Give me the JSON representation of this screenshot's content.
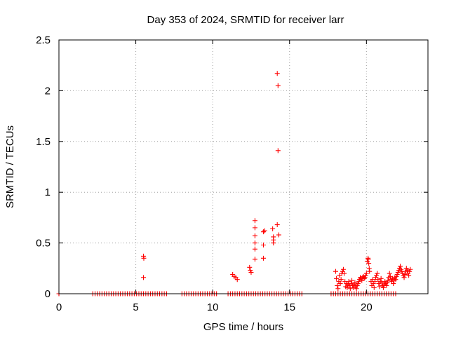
{
  "chart_data": {
    "type": "scatter",
    "title": "Day 353 of 2024, SRMTID for receiver larr",
    "xlabel": "GPS time / hours",
    "ylabel": "SRMTID / TECUs",
    "xlim": [
      0,
      24
    ],
    "ylim": [
      0,
      2.5
    ],
    "x_ticks": [
      0,
      5,
      10,
      15,
      20
    ],
    "x_tick_labels": [
      "0",
      "5",
      "10",
      "15",
      "20"
    ],
    "y_ticks": [
      0,
      0.5,
      1,
      1.5,
      2,
      2.5
    ],
    "y_tick_labels": [
      "0",
      "0.5",
      "1",
      "1.5",
      "2",
      "2.5"
    ],
    "grid": true,
    "marker": "+",
    "series": [
      {
        "name": "SRMTID",
        "color": "#ff0000",
        "points": [
          [
            0.0,
            0.0
          ],
          [
            2.2,
            0.0
          ],
          [
            2.35,
            0.0
          ],
          [
            2.5,
            0.0
          ],
          [
            2.65,
            0.0
          ],
          [
            2.8,
            0.0
          ],
          [
            2.95,
            0.0
          ],
          [
            3.1,
            0.0
          ],
          [
            3.25,
            0.0
          ],
          [
            3.4,
            0.0
          ],
          [
            3.55,
            0.0
          ],
          [
            3.7,
            0.0
          ],
          [
            3.85,
            0.0
          ],
          [
            4.0,
            0.0
          ],
          [
            4.15,
            0.0
          ],
          [
            4.3,
            0.0
          ],
          [
            4.45,
            0.0
          ],
          [
            4.6,
            0.0
          ],
          [
            4.75,
            0.0
          ],
          [
            4.9,
            0.0
          ],
          [
            5.05,
            0.0
          ],
          [
            5.2,
            0.0
          ],
          [
            5.35,
            0.0
          ],
          [
            5.5,
            0.0
          ],
          [
            5.65,
            0.0
          ],
          [
            5.8,
            0.0
          ],
          [
            5.95,
            0.0
          ],
          [
            6.1,
            0.0
          ],
          [
            6.25,
            0.0
          ],
          [
            6.4,
            0.0
          ],
          [
            6.55,
            0.0
          ],
          [
            6.7,
            0.0
          ],
          [
            6.85,
            0.0
          ],
          [
            7.0,
            0.0
          ],
          [
            5.5,
            0.37
          ],
          [
            5.52,
            0.35
          ],
          [
            5.5,
            0.16
          ],
          [
            8.0,
            0.0
          ],
          [
            8.15,
            0.0
          ],
          [
            8.3,
            0.0
          ],
          [
            8.45,
            0.0
          ],
          [
            8.6,
            0.0
          ],
          [
            8.75,
            0.0
          ],
          [
            8.9,
            0.0
          ],
          [
            9.05,
            0.0
          ],
          [
            9.2,
            0.0
          ],
          [
            9.35,
            0.0
          ],
          [
            9.5,
            0.0
          ],
          [
            9.65,
            0.0
          ],
          [
            9.8,
            0.0
          ],
          [
            9.95,
            0.0
          ],
          [
            10.1,
            0.0
          ],
          [
            10.25,
            0.0
          ],
          [
            11.0,
            0.0
          ],
          [
            11.15,
            0.0
          ],
          [
            11.3,
            0.0
          ],
          [
            11.45,
            0.0
          ],
          [
            11.6,
            0.0
          ],
          [
            11.75,
            0.0
          ],
          [
            11.9,
            0.0
          ],
          [
            12.05,
            0.0
          ],
          [
            12.2,
            0.0
          ],
          [
            12.35,
            0.0
          ],
          [
            12.5,
            0.0
          ],
          [
            12.65,
            0.0
          ],
          [
            12.8,
            0.0
          ],
          [
            12.95,
            0.0
          ],
          [
            13.1,
            0.0
          ],
          [
            13.25,
            0.0
          ],
          [
            13.4,
            0.0
          ],
          [
            13.55,
            0.0
          ],
          [
            13.7,
            0.0
          ],
          [
            13.85,
            0.0
          ],
          [
            14.0,
            0.0
          ],
          [
            14.15,
            0.0
          ],
          [
            14.3,
            0.0
          ],
          [
            14.45,
            0.0
          ],
          [
            14.6,
            0.0
          ],
          [
            14.75,
            0.0
          ],
          [
            14.9,
            0.0
          ],
          [
            15.05,
            0.0
          ],
          [
            15.2,
            0.0
          ],
          [
            15.35,
            0.0
          ],
          [
            15.5,
            0.0
          ],
          [
            15.65,
            0.0
          ],
          [
            15.8,
            0.0
          ],
          [
            11.3,
            0.19
          ],
          [
            11.4,
            0.17
          ],
          [
            11.5,
            0.16
          ],
          [
            11.6,
            0.14
          ],
          [
            12.4,
            0.26
          ],
          [
            12.45,
            0.23
          ],
          [
            12.5,
            0.21
          ],
          [
            12.75,
            0.72
          ],
          [
            12.75,
            0.65
          ],
          [
            12.75,
            0.57
          ],
          [
            12.75,
            0.5
          ],
          [
            12.75,
            0.44
          ],
          [
            12.75,
            0.34
          ],
          [
            13.3,
            0.61
          ],
          [
            13.38,
            0.62
          ],
          [
            13.3,
            0.48
          ],
          [
            13.3,
            0.35
          ],
          [
            13.9,
            0.64
          ],
          [
            13.95,
            0.56
          ],
          [
            13.95,
            0.53
          ],
          [
            13.95,
            0.5
          ],
          [
            14.2,
            2.17
          ],
          [
            14.25,
            2.05
          ],
          [
            14.25,
            1.41
          ],
          [
            14.2,
            0.68
          ],
          [
            14.3,
            0.58
          ],
          [
            17.7,
            0.0
          ],
          [
            17.85,
            0.0
          ],
          [
            18.0,
            0.0
          ],
          [
            18.15,
            0.0
          ],
          [
            18.3,
            0.0
          ],
          [
            18.45,
            0.0
          ],
          [
            18.6,
            0.0
          ],
          [
            18.75,
            0.0
          ],
          [
            18.9,
            0.0
          ],
          [
            19.05,
            0.0
          ],
          [
            19.2,
            0.0
          ],
          [
            19.35,
            0.0
          ],
          [
            19.5,
            0.0
          ],
          [
            19.65,
            0.0
          ],
          [
            19.8,
            0.0
          ],
          [
            19.95,
            0.0
          ],
          [
            20.1,
            0.0
          ],
          [
            20.25,
            0.0
          ],
          [
            20.4,
            0.0
          ],
          [
            20.55,
            0.0
          ],
          [
            20.7,
            0.0
          ],
          [
            20.85,
            0.0
          ],
          [
            21.0,
            0.0
          ],
          [
            21.15,
            0.0
          ],
          [
            21.3,
            0.0
          ],
          [
            21.45,
            0.0
          ],
          [
            21.6,
            0.0
          ],
          [
            21.75,
            0.0
          ],
          [
            21.9,
            0.0
          ],
          [
            18.0,
            0.22
          ],
          [
            18.05,
            0.15
          ],
          [
            18.1,
            0.08
          ],
          [
            18.15,
            0.05
          ],
          [
            18.2,
            0.12
          ],
          [
            18.25,
            0.18
          ],
          [
            18.3,
            0.1
          ],
          [
            18.35,
            0.14
          ],
          [
            18.4,
            0.2
          ],
          [
            18.45,
            0.22
          ],
          [
            18.5,
            0.24
          ],
          [
            18.55,
            0.2
          ],
          [
            18.6,
            0.12
          ],
          [
            18.65,
            0.07
          ],
          [
            18.7,
            0.1
          ],
          [
            18.75,
            0.06
          ],
          [
            18.8,
            0.09
          ],
          [
            18.85,
            0.12
          ],
          [
            18.9,
            0.08
          ],
          [
            18.95,
            0.05
          ],
          [
            19.0,
            0.1
          ],
          [
            19.05,
            0.13
          ],
          [
            19.1,
            0.08
          ],
          [
            19.15,
            0.06
          ],
          [
            19.2,
            0.09
          ],
          [
            19.25,
            0.11
          ],
          [
            19.3,
            0.07
          ],
          [
            19.35,
            0.05
          ],
          [
            19.4,
            0.08
          ],
          [
            19.45,
            0.1
          ],
          [
            19.5,
            0.12
          ],
          [
            19.55,
            0.14
          ],
          [
            19.6,
            0.16
          ],
          [
            19.65,
            0.15
          ],
          [
            19.7,
            0.13
          ],
          [
            19.75,
            0.16
          ],
          [
            19.8,
            0.17
          ],
          [
            19.85,
            0.15
          ],
          [
            19.9,
            0.16
          ],
          [
            19.95,
            0.18
          ],
          [
            20.0,
            0.2
          ],
          [
            20.05,
            0.32
          ],
          [
            20.1,
            0.35
          ],
          [
            20.12,
            0.34
          ],
          [
            20.15,
            0.3
          ],
          [
            20.18,
            0.25
          ],
          [
            20.2,
            0.22
          ],
          [
            20.3,
            0.12
          ],
          [
            20.35,
            0.08
          ],
          [
            20.4,
            0.14
          ],
          [
            20.45,
            0.1
          ],
          [
            20.5,
            0.06
          ],
          [
            20.55,
            0.12
          ],
          [
            20.6,
            0.16
          ],
          [
            20.65,
            0.18
          ],
          [
            20.7,
            0.2
          ],
          [
            20.75,
            0.14
          ],
          [
            20.8,
            0.1
          ],
          [
            20.85,
            0.07
          ],
          [
            20.9,
            0.12
          ],
          [
            20.95,
            0.15
          ],
          [
            21.0,
            0.11
          ],
          [
            21.05,
            0.08
          ],
          [
            21.1,
            0.06
          ],
          [
            21.15,
            0.09
          ],
          [
            21.2,
            0.12
          ],
          [
            21.25,
            0.1
          ],
          [
            21.3,
            0.08
          ],
          [
            21.35,
            0.11
          ],
          [
            21.4,
            0.13
          ],
          [
            21.45,
            0.16
          ],
          [
            21.5,
            0.2
          ],
          [
            21.55,
            0.17
          ],
          [
            21.6,
            0.14
          ],
          [
            21.65,
            0.12
          ],
          [
            21.7,
            0.15
          ],
          [
            21.75,
            0.1
          ],
          [
            21.8,
            0.13
          ],
          [
            21.85,
            0.16
          ],
          [
            21.9,
            0.14
          ],
          [
            21.95,
            0.17
          ],
          [
            22.0,
            0.19
          ],
          [
            22.05,
            0.21
          ],
          [
            22.1,
            0.23
          ],
          [
            22.15,
            0.25
          ],
          [
            22.2,
            0.27
          ],
          [
            22.25,
            0.24
          ],
          [
            22.3,
            0.22
          ],
          [
            22.35,
            0.2
          ],
          [
            22.4,
            0.18
          ],
          [
            22.45,
            0.16
          ],
          [
            22.5,
            0.19
          ],
          [
            22.55,
            0.22
          ],
          [
            22.6,
            0.25
          ],
          [
            22.65,
            0.23
          ],
          [
            22.7,
            0.2
          ],
          [
            22.75,
            0.18
          ],
          [
            22.8,
            0.22
          ],
          [
            22.85,
            0.24
          ]
        ]
      }
    ]
  }
}
